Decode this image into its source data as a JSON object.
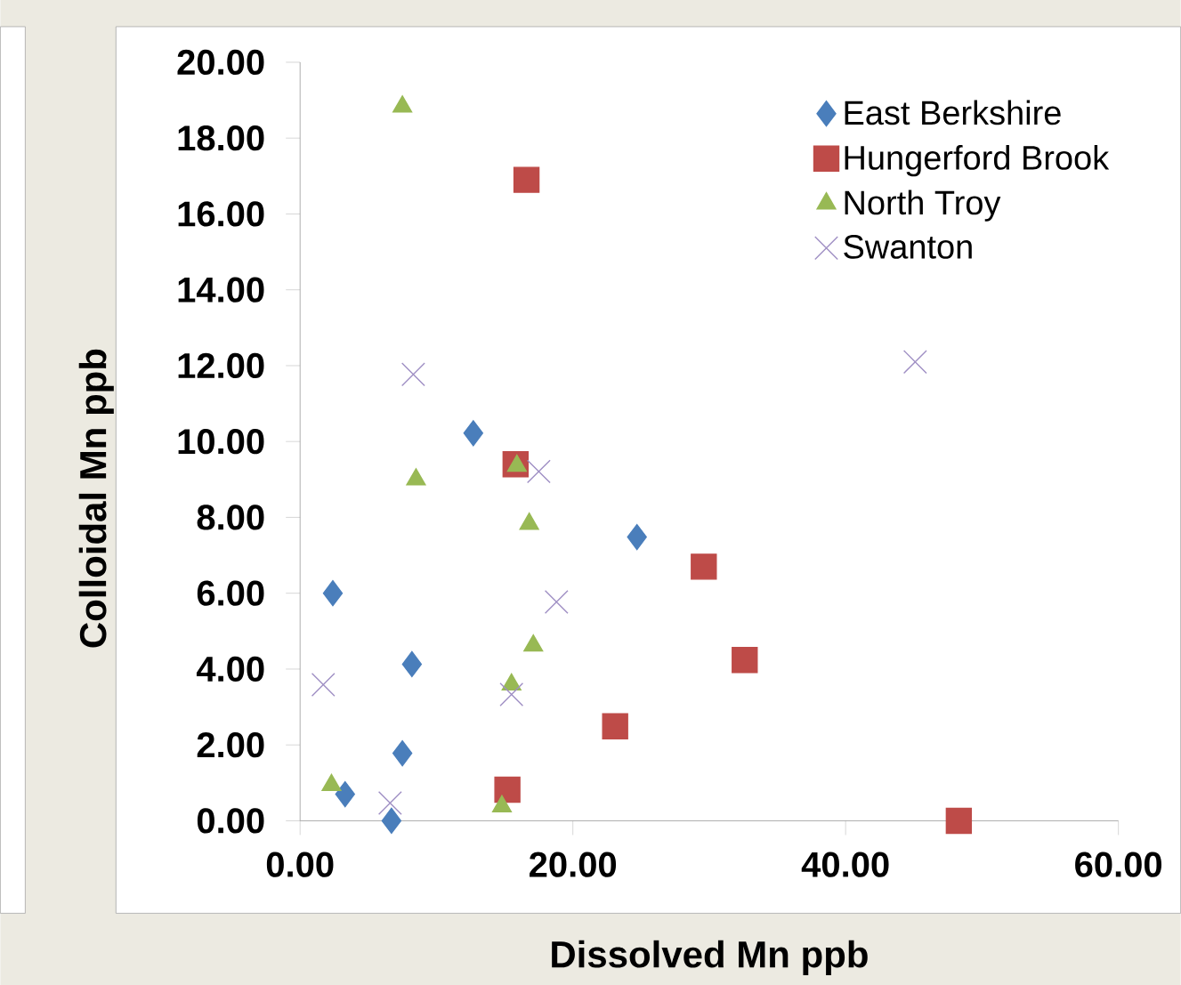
{
  "chart_data": {
    "type": "scatter",
    "xlabel": "Dissolved Mn ppb",
    "ylabel": "Colloidal Mn ppb",
    "xlim": [
      0,
      60
    ],
    "ylim": [
      0,
      20
    ],
    "xticks": [
      {
        "value": 0,
        "label": "0.00"
      },
      {
        "value": 20,
        "label": "20.00"
      },
      {
        "value": 40,
        "label": "40.00"
      },
      {
        "value": 60,
        "label": "60.00"
      }
    ],
    "yticks": [
      {
        "value": 0,
        "label": "0.00"
      },
      {
        "value": 2,
        "label": "2.00"
      },
      {
        "value": 4,
        "label": "4.00"
      },
      {
        "value": 6,
        "label": "6.00"
      },
      {
        "value": 8,
        "label": "8.00"
      },
      {
        "value": 10,
        "label": "10.00"
      },
      {
        "value": 12,
        "label": "12.00"
      },
      {
        "value": 14,
        "label": "14.00"
      },
      {
        "value": 16,
        "label": "16.00"
      },
      {
        "value": 18,
        "label": "18.00"
      },
      {
        "value": 20,
        "label": "20.00"
      }
    ],
    "grid": false,
    "legend": "top right",
    "series": [
      {
        "name": "East Berkshire",
        "color": "#4a7ebb",
        "marker": "diamond",
        "x": [
          2.4,
          3.3,
          6.7,
          7.5,
          8.2,
          12.7,
          24.7
        ],
        "values": [
          6.0,
          0.7,
          0.0,
          1.78,
          4.13,
          10.22,
          7.48
        ]
      },
      {
        "name": "Hungerford Brook",
        "color": "#be4b48",
        "marker": "square",
        "x": [
          16.6,
          15.8,
          29.6,
          32.6,
          23.1,
          15.2,
          48.3
        ],
        "values": [
          16.9,
          9.4,
          6.7,
          4.24,
          2.49,
          0.82,
          0.0
        ]
      },
      {
        "name": "North Troy",
        "color": "#98b954",
        "marker": "triangle",
        "x": [
          7.5,
          8.5,
          15.9,
          16.8,
          17.1,
          15.5,
          2.3,
          14.8
        ],
        "values": [
          18.83,
          9.0,
          9.36,
          7.83,
          4.62,
          3.59,
          0.94,
          0.38
        ]
      },
      {
        "name": "Swanton",
        "color": "#9f8fc4",
        "marker": "cross",
        "x": [
          8.3,
          17.5,
          18.8,
          45.1,
          1.7,
          15.5,
          6.6
        ],
        "values": [
          11.77,
          9.21,
          5.77,
          12.1,
          3.59,
          3.33,
          0.47
        ]
      }
    ]
  }
}
